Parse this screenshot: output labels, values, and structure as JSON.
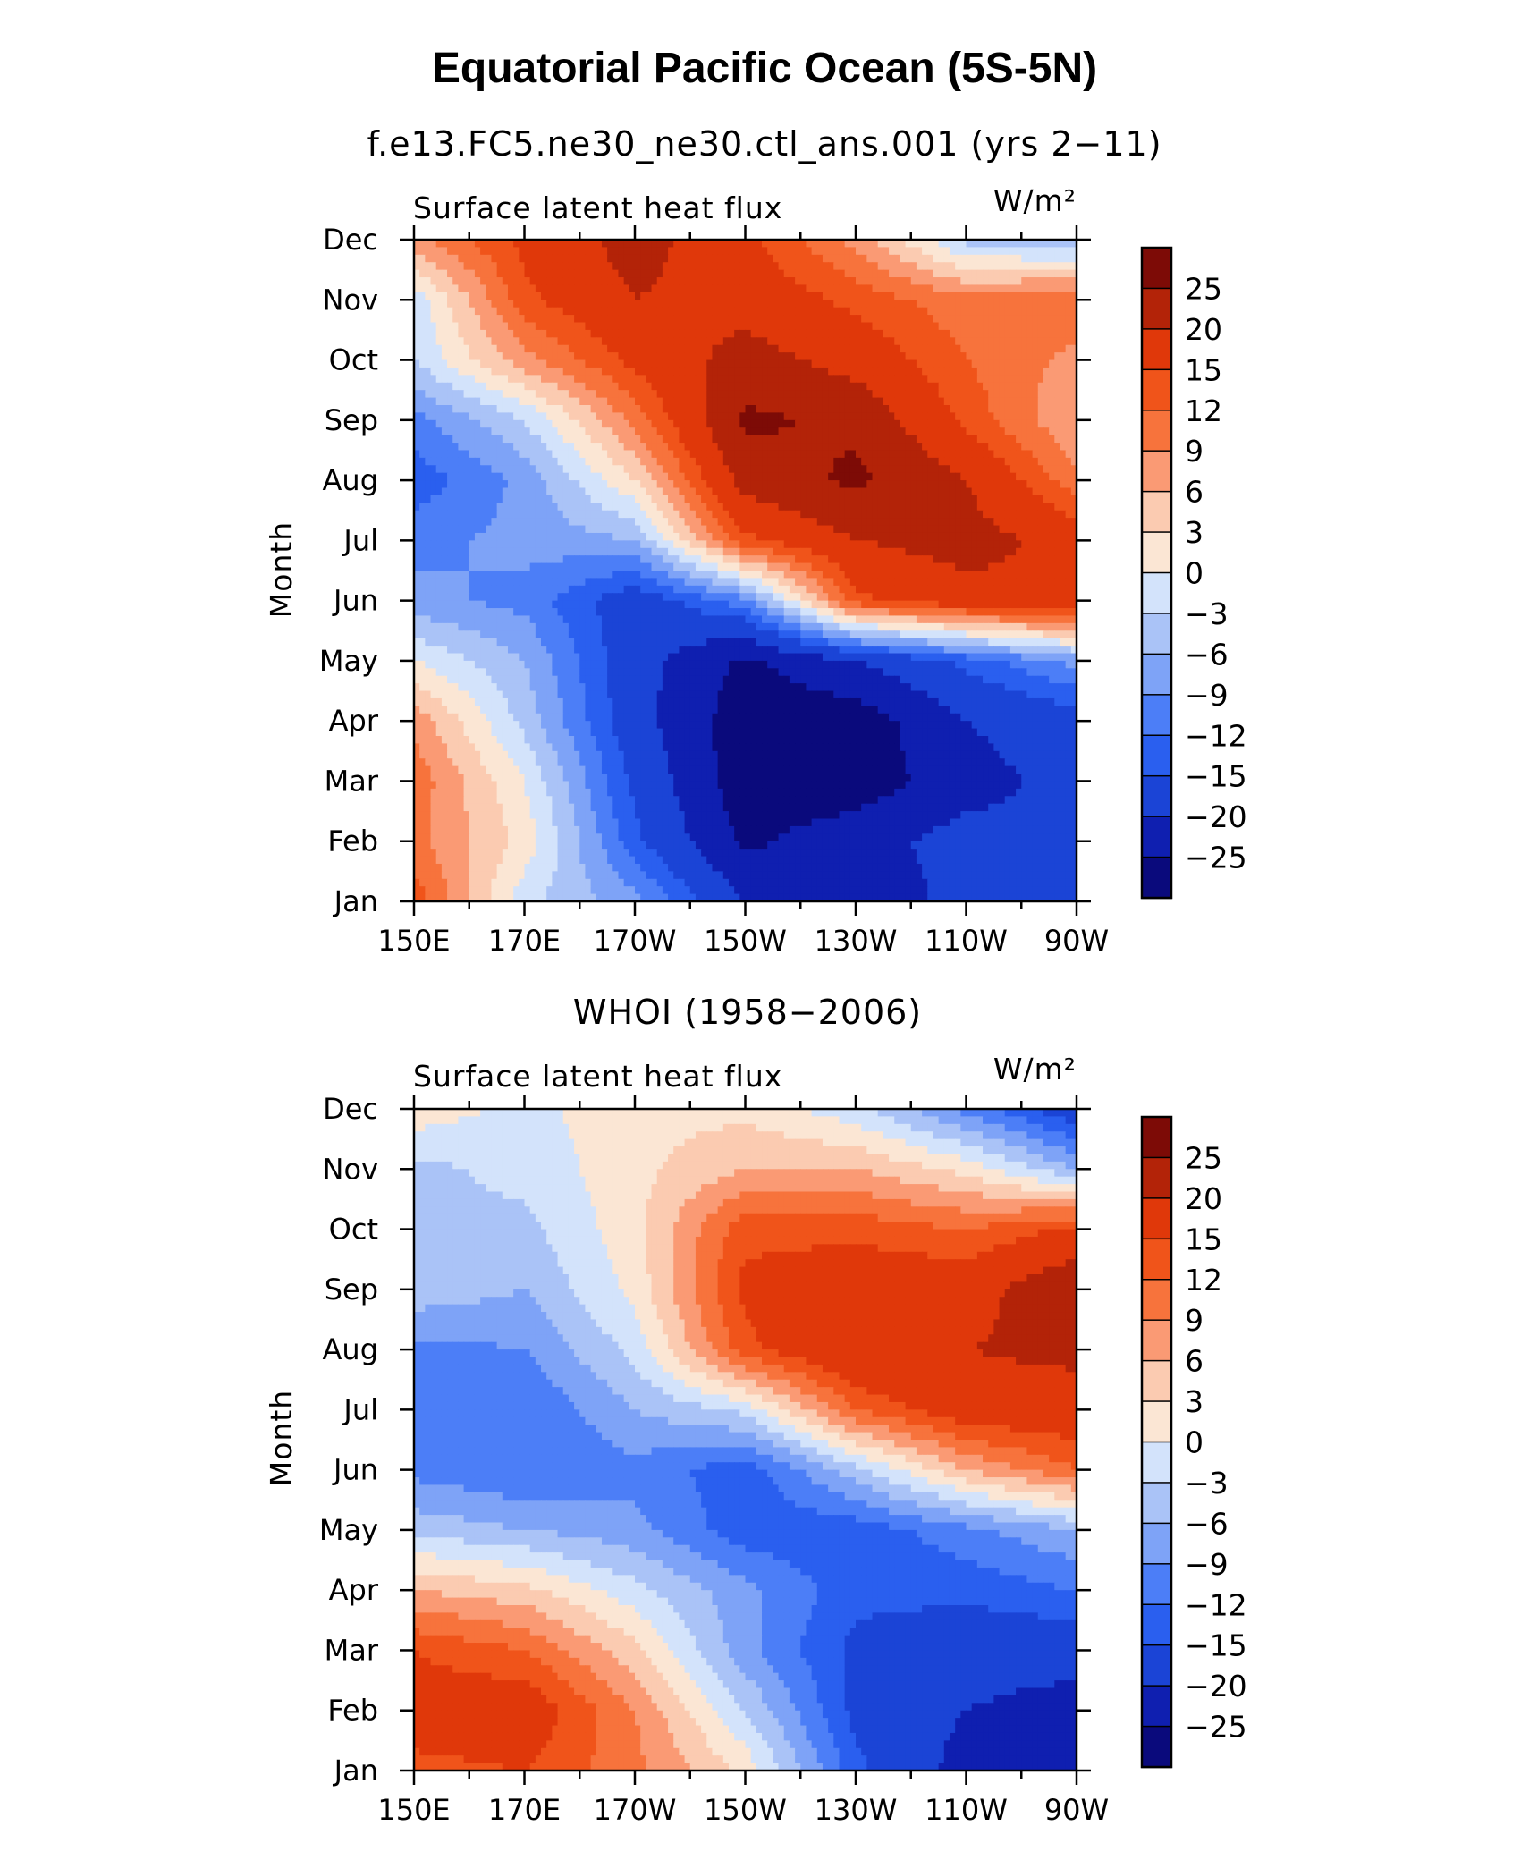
{
  "figure_title": "Equatorial Pacific Ocean (5S-5N)",
  "chart_data": [
    {
      "type": "heatmap",
      "title": "f.e13.FC5.ne30_ne30.ctl_ans.001 (yrs 2−11)",
      "field_label": "Surface latent heat flux",
      "units_label": "W/m²",
      "ylabel": "Month",
      "x_ticks": [
        "150E",
        "170E",
        "170W",
        "150W",
        "130W",
        "110W",
        "90W"
      ],
      "x_tick_lon": [
        150,
        170,
        190,
        210,
        230,
        250,
        270
      ],
      "x_range": [
        150,
        270
      ],
      "y_ticks": [
        "Jan",
        "Feb",
        "Mar",
        "Apr",
        "May",
        "Jun",
        "Jul",
        "Aug",
        "Sep",
        "Oct",
        "Nov",
        "Dec"
      ],
      "grid_lon": [
        150,
        170,
        190,
        210,
        230,
        250,
        270
      ],
      "values": [
        [
          14,
          -2,
          -8,
          -20,
          -24,
          -18,
          -18
        ],
        [
          10,
          2,
          -14,
          -26,
          -22,
          -18,
          -20
        ],
        [
          11,
          0,
          -16,
          -28,
          -28,
          -22,
          -18
        ],
        [
          8,
          -4,
          -18,
          -28,
          -28,
          -20,
          -17
        ],
        [
          0,
          -6,
          -18,
          -26,
          -20,
          -14,
          -8
        ],
        [
          -8,
          -10,
          -18,
          -10,
          14,
          18,
          20
        ],
        [
          -10,
          -8,
          -6,
          14,
          20,
          22,
          18
        ],
        [
          -14,
          -8,
          3,
          22,
          26,
          20,
          10
        ],
        [
          -10,
          -3,
          10,
          26,
          24,
          14,
          6
        ],
        [
          -3,
          8,
          16,
          22,
          18,
          12,
          8
        ],
        [
          -2,
          14,
          20,
          18,
          14,
          10,
          12
        ],
        [
          8,
          16,
          22,
          16,
          8,
          -4,
          -6
        ]
      ]
    },
    {
      "type": "heatmap",
      "title": "WHOI (1958−2006)",
      "field_label": "Surface latent heat flux",
      "units_label": "W/m²",
      "ylabel": "Month",
      "x_ticks": [
        "150E",
        "170E",
        "170W",
        "150W",
        "130W",
        "110W",
        "90W"
      ],
      "x_tick_lon": [
        150,
        170,
        190,
        210,
        230,
        250,
        270
      ],
      "x_range": [
        150,
        270
      ],
      "y_ticks": [
        "Jan",
        "Feb",
        "Mar",
        "Apr",
        "May",
        "Jun",
        "Jul",
        "Aug",
        "Sep",
        "Oct",
        "Nov",
        "Dec"
      ],
      "grid_lon": [
        150,
        170,
        190,
        210,
        230,
        250,
        270
      ],
      "values": [
        [
          14,
          15,
          10,
          2,
          -14,
          -22,
          -24
        ],
        [
          17,
          18,
          9,
          -3,
          -16,
          -20,
          -22
        ],
        [
          15,
          12,
          4,
          -8,
          -16,
          -18,
          -18
        ],
        [
          6,
          4,
          -2,
          -8,
          -14,
          -14,
          -12
        ],
        [
          -4,
          -6,
          -8,
          -14,
          -14,
          -10,
          -6
        ],
        [
          -10,
          -12,
          -10,
          -14,
          -4,
          6,
          12
        ],
        [
          -12,
          -12,
          -6,
          -2,
          12,
          18,
          18
        ],
        [
          -10,
          -9,
          -2,
          14,
          20,
          20,
          21
        ],
        [
          -4,
          -6,
          1,
          16,
          18,
          18,
          24
        ],
        [
          -3,
          -4,
          2,
          14,
          14,
          12,
          16
        ],
        [
          -4,
          -2,
          2,
          6,
          6,
          2,
          -6
        ],
        [
          2,
          -1,
          2,
          2,
          -2,
          -10,
          -18
        ]
      ]
    }
  ],
  "colorbar": {
    "labels": [
      "25",
      "20",
      "15",
      "12",
      "9",
      "6",
      "3",
      "0",
      "−3",
      "−6",
      "−9",
      "−12",
      "−15",
      "−20",
      "−25"
    ],
    "levels": [
      -25,
      -20,
      -15,
      -12,
      -9,
      -6,
      -3,
      0,
      3,
      6,
      9,
      12,
      15,
      20,
      25
    ],
    "colors": [
      "#0a0a7c",
      "#0f1fb0",
      "#1b44d6",
      "#2a5fef",
      "#4c7ef7",
      "#7ea3f7",
      "#aac3f7",
      "#d3e3fb",
      "#fbe6d4",
      "#fbcbb1",
      "#fa9a74",
      "#f7733c",
      "#f0541a",
      "#e0380a",
      "#b32308",
      "#7d0b06"
    ]
  }
}
